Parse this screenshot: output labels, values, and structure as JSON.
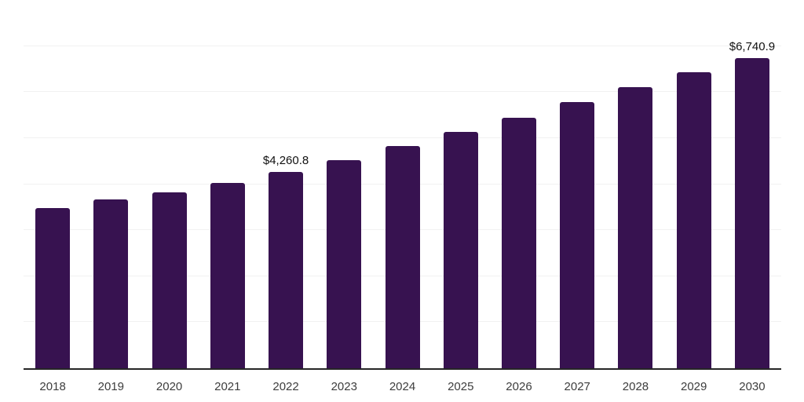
{
  "chart": {
    "background_color": "#ffffff",
    "bar_color": "#371250",
    "grid_color": "#f1f1f1",
    "axis_color": "#262626",
    "value_label_color": "#111111",
    "tick_label_color": "#3d3d3d"
  },
  "chart_data": {
    "type": "bar",
    "title": "",
    "xlabel": "",
    "ylabel": "",
    "categories": [
      "2018",
      "2019",
      "2020",
      "2021",
      "2022",
      "2023",
      "2024",
      "2025",
      "2026",
      "2027",
      "2028",
      "2029",
      "2030"
    ],
    "values": [
      3475,
      3675,
      3815,
      4025,
      4260.8,
      4520,
      4835,
      5140,
      5450,
      5775,
      6100,
      6430,
      6740.9
    ],
    "value_labels": {
      "2022": "$4,260.8",
      "2030": "$6,740.9"
    },
    "ylim": [
      0,
      8000
    ],
    "gridline_interval": 1000,
    "grid": true,
    "y_axis_tick_labels": "hidden",
    "legend_position": "none"
  }
}
